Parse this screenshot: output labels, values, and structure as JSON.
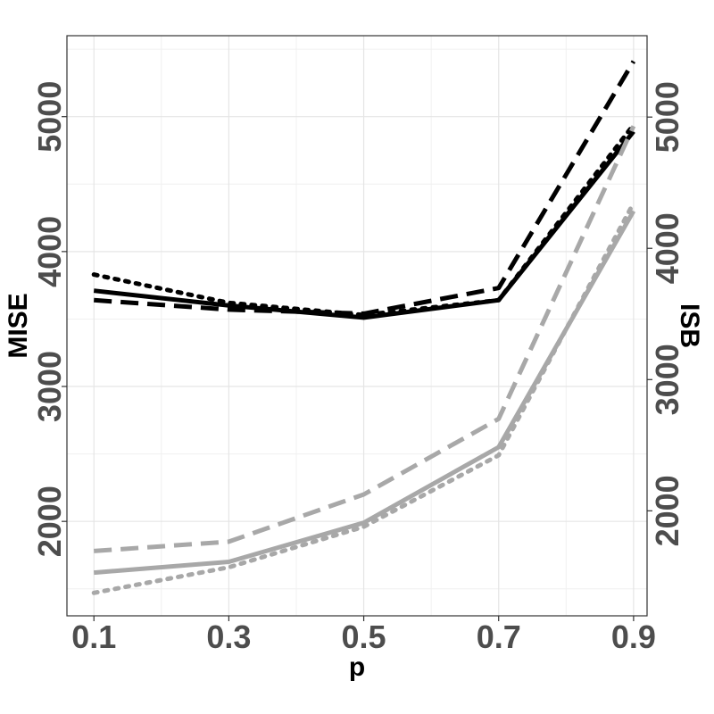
{
  "chart_data": {
    "type": "line",
    "xlabel": "p",
    "ylabel_left": "MISE",
    "ylabel_right": "ISB",
    "x": [
      0.1,
      0.3,
      0.5,
      0.7,
      0.9
    ],
    "x_tick_labels": [
      "0.1",
      "0.3",
      "0.5",
      "0.7",
      "0.9"
    ],
    "x_range": [
      0.06,
      0.92
    ],
    "y_left_range": [
      1300,
      5600
    ],
    "y_left_ticks": [
      2000,
      3000,
      4000,
      5000
    ],
    "y_left_tick_labels": [
      "2000",
      "3000",
      "4000",
      "5000"
    ],
    "y_right_range": [
      1200,
      5620
    ],
    "y_right_ticks": [
      2000,
      3000,
      4000,
      5000
    ],
    "y_right_tick_labels": [
      "2000",
      "3000",
      "4000",
      "5000"
    ],
    "grid": true,
    "legend": "none",
    "series": [
      {
        "style": "solid",
        "color": "#000000",
        "axis": "left",
        "values": [
          3710,
          3600,
          3510,
          3640,
          4890
        ]
      },
      {
        "style": "dashed",
        "color": "#000000",
        "axis": "left",
        "values": [
          3640,
          3570,
          3540,
          3730,
          5410
        ]
      },
      {
        "style": "dotted",
        "color": "#000000",
        "axis": "left",
        "values": [
          3830,
          3620,
          3530,
          3640,
          4940
        ]
      },
      {
        "style": "solid",
        "color": "#a8a8a8",
        "axis": "left",
        "values": [
          1620,
          1700,
          1990,
          2550,
          4300
        ]
      },
      {
        "style": "dashed",
        "color": "#a8a8a8",
        "axis": "left",
        "values": [
          1780,
          1850,
          2200,
          2760,
          4930
        ]
      },
      {
        "style": "dotted",
        "color": "#a8a8a8",
        "axis": "left",
        "values": [
          1470,
          1660,
          1960,
          2490,
          4360
        ]
      }
    ]
  }
}
